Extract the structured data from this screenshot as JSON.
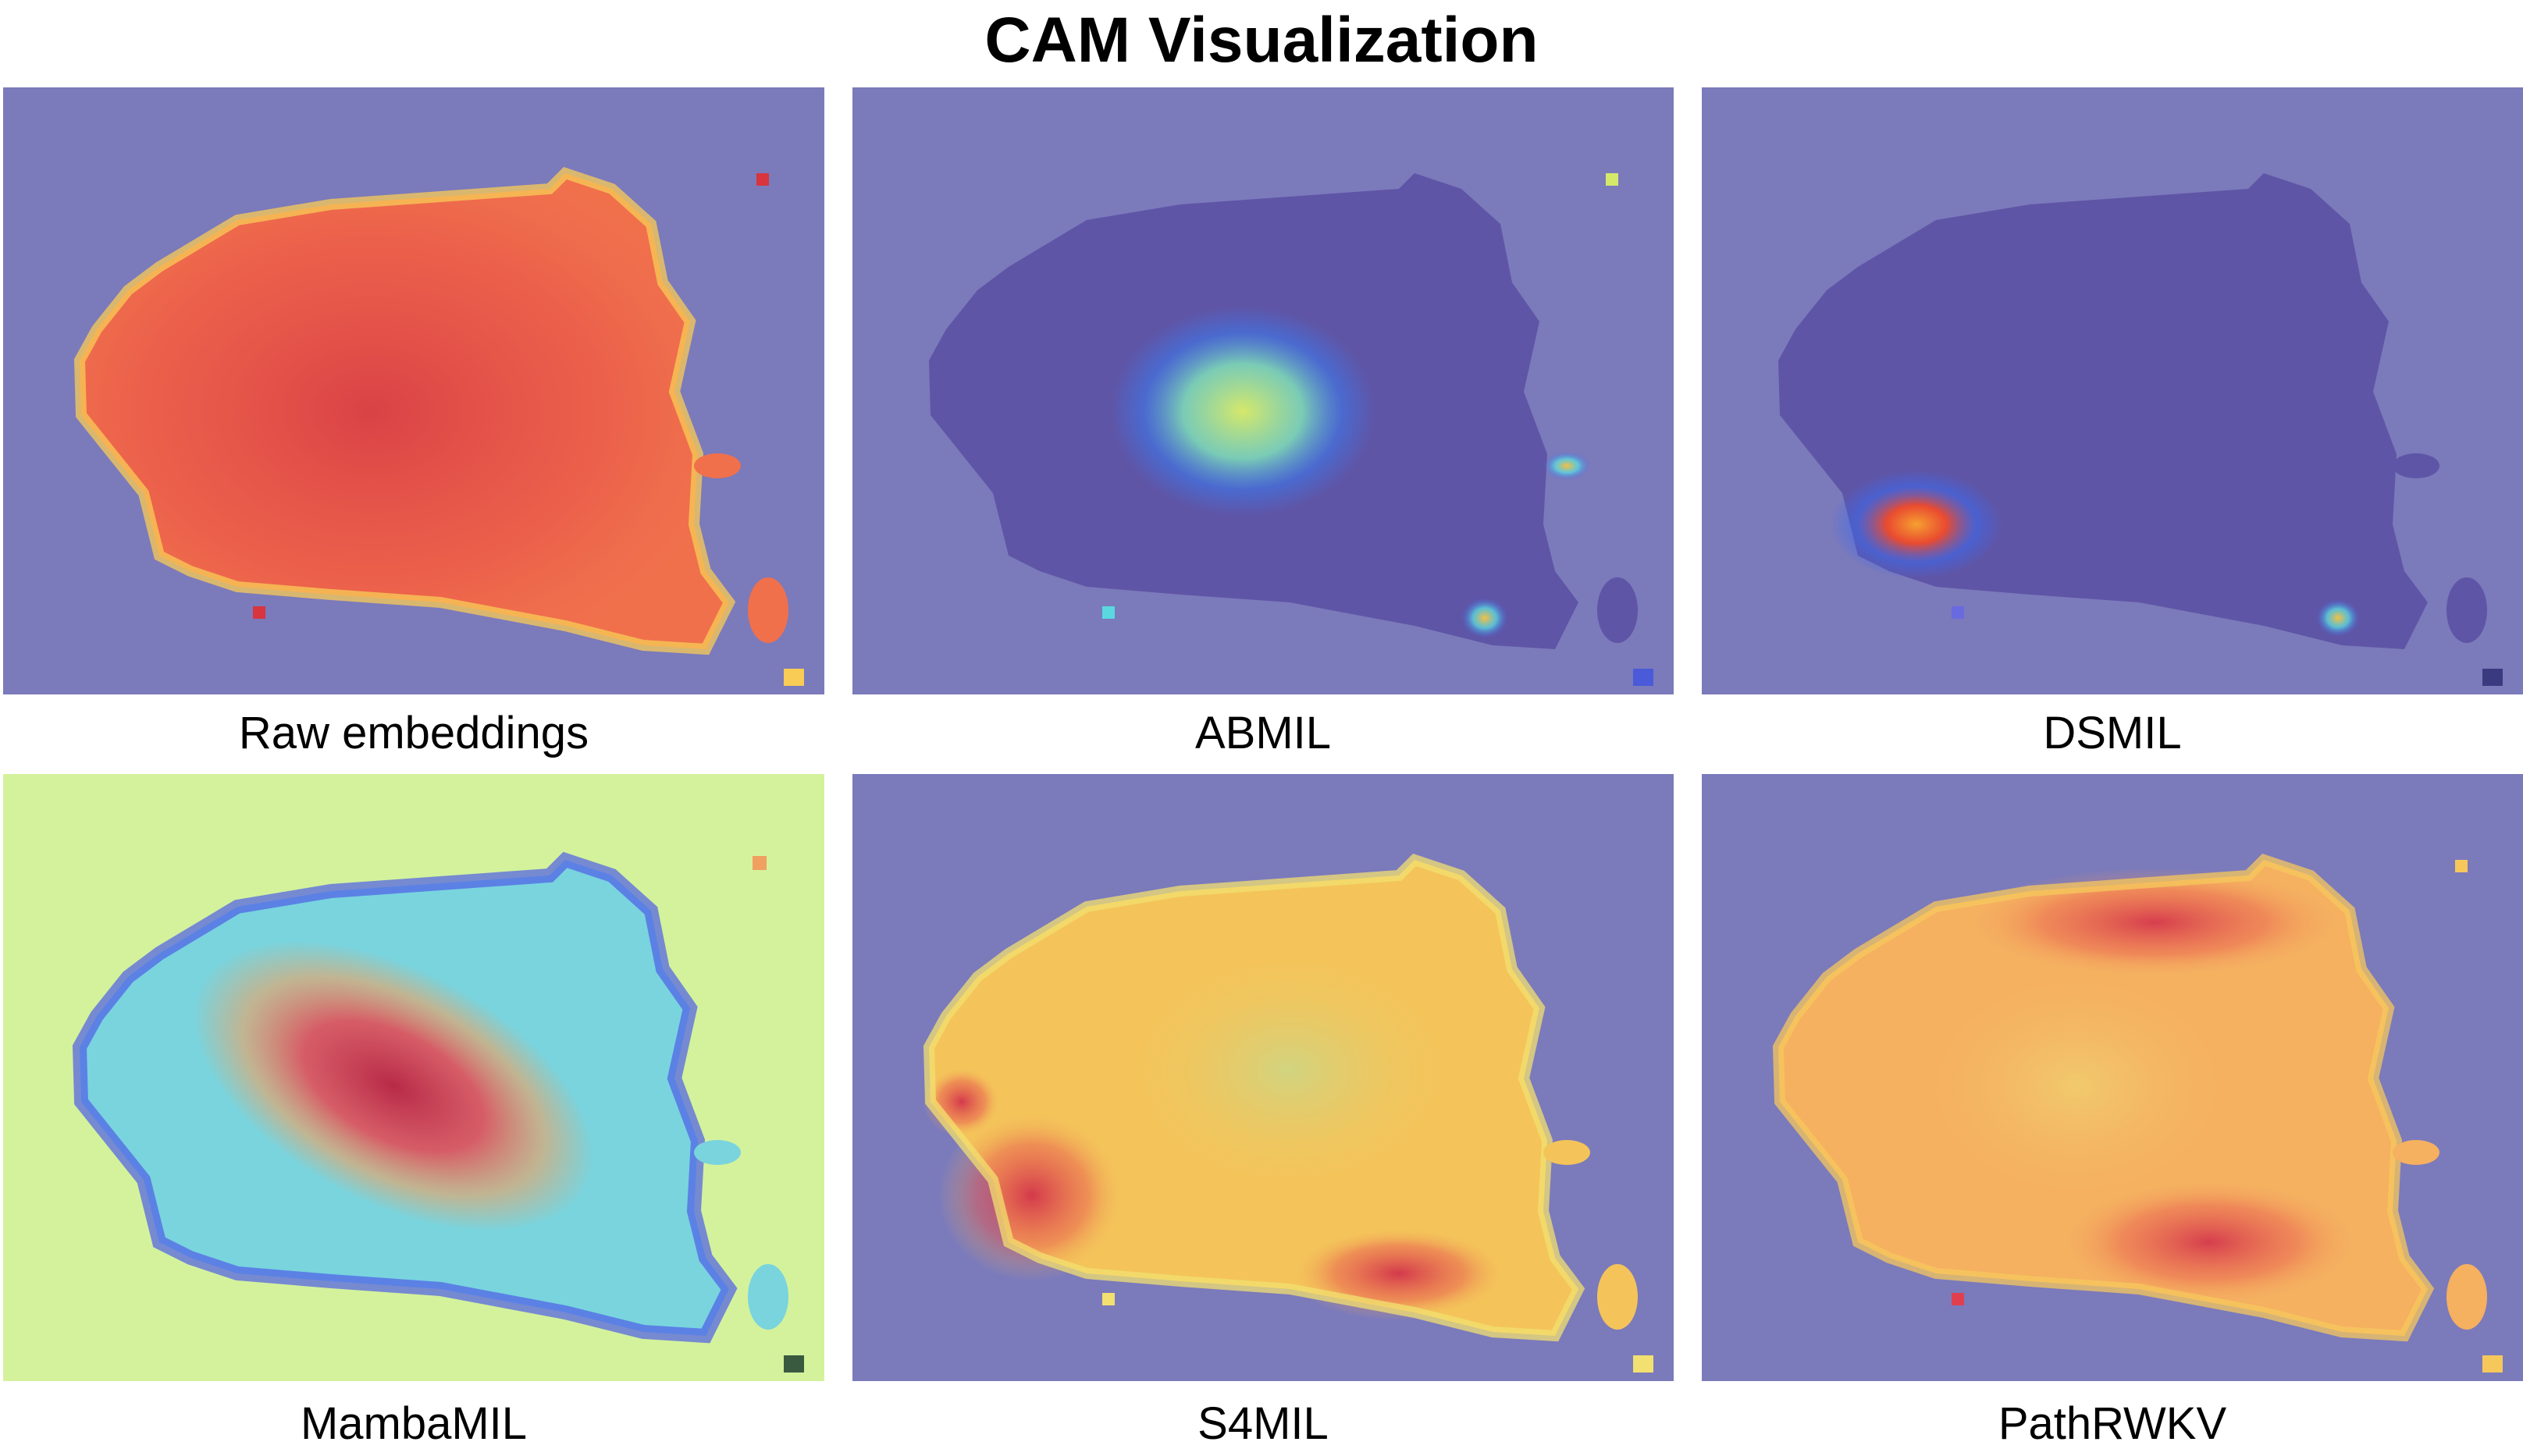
{
  "figure": {
    "title": "CAM Visualization"
  },
  "panels": [
    {
      "label": "Raw embeddings",
      "background": "#7b7abb",
      "tissue_fill": "#f0704c",
      "hot_color": "#d8353f",
      "edge_color": "#f8cc55"
    },
    {
      "label": "ABMIL",
      "background": "#7b7abb",
      "tissue_fill": "#5f55a6",
      "hot_color": "#c9e56a",
      "edge_color": "#4e6cf0"
    },
    {
      "label": "DSMIL",
      "background": "#7b7abb",
      "tissue_fill": "#5f55a6",
      "hot_color": "#f04a2a",
      "edge_color": "#4e6cf0"
    },
    {
      "label": "MambaMIL",
      "background": "#d4f29c",
      "tissue_fill": "#79d4de",
      "hot_color": "#c8324c",
      "edge_color": "#4e5ee8"
    },
    {
      "label": "S4MIL",
      "background": "#7b7abb",
      "tissue_fill": "#f4c45a",
      "hot_color": "#e4404e",
      "edge_color": "#f2e070"
    },
    {
      "label": "PathRWKV",
      "background": "#7b7abb",
      "tissue_fill": "#f5b060",
      "hot_color": "#e0404e",
      "edge_color": "#f6c85c"
    }
  ]
}
